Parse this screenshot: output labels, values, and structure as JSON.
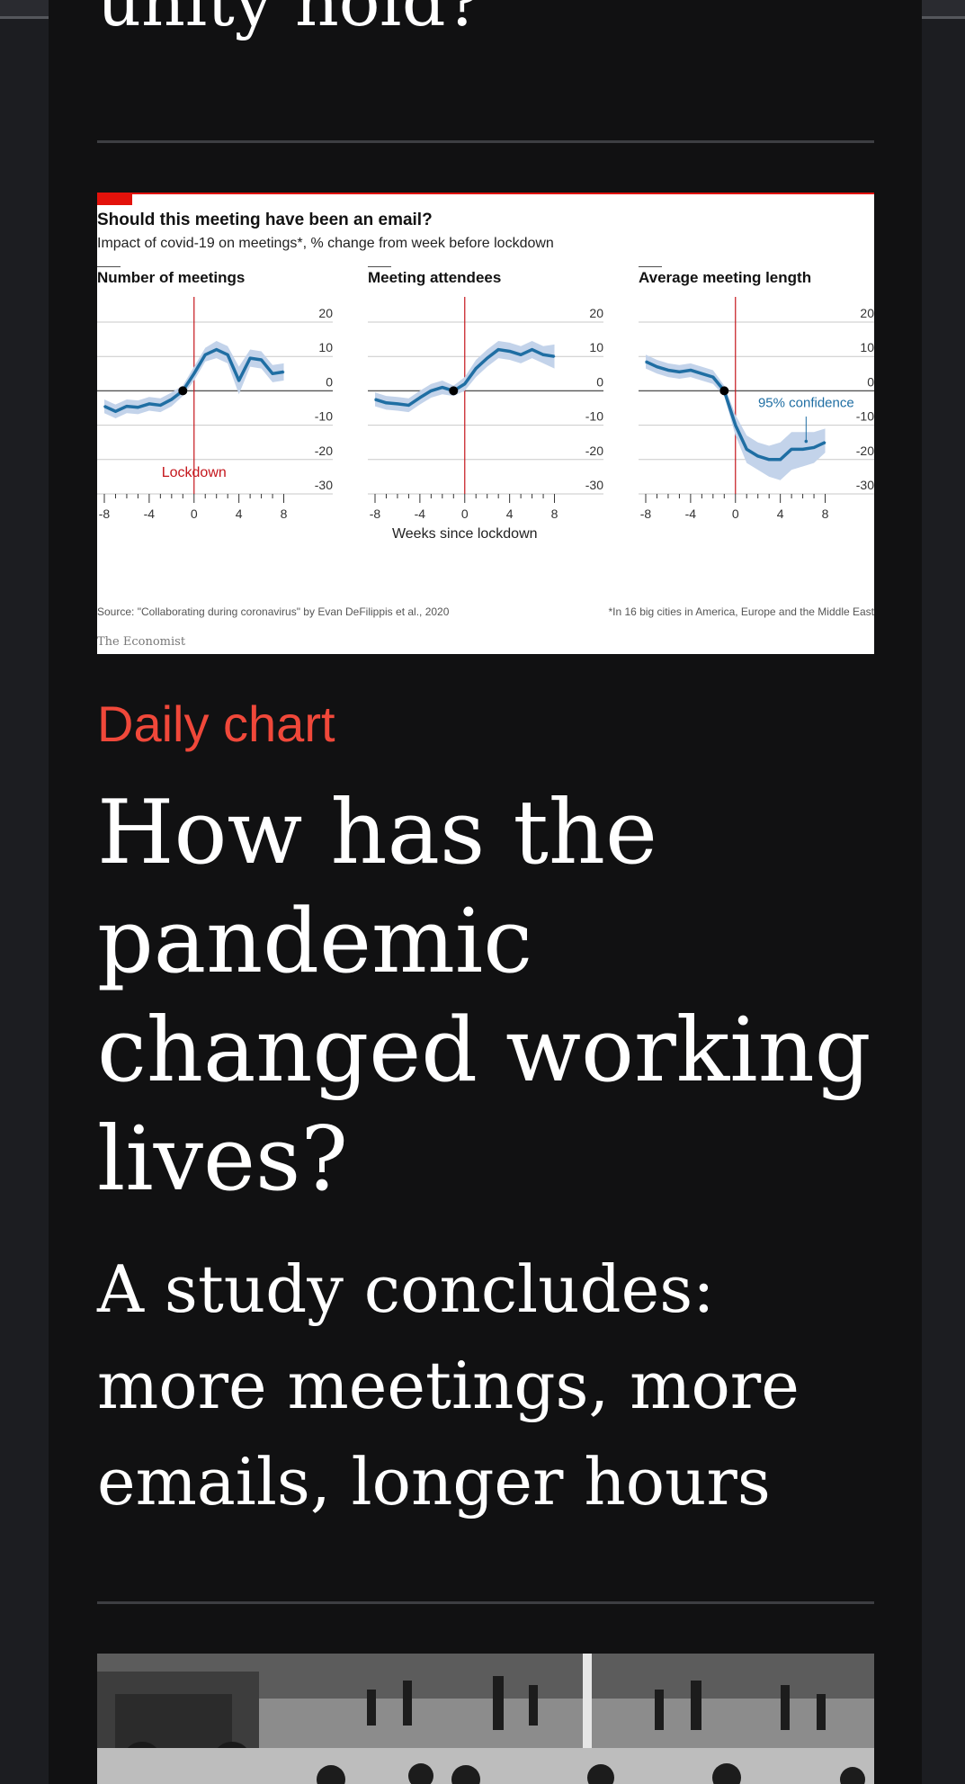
{
  "previous_article": {
    "title_fragment": "unity hold?"
  },
  "chart": {
    "title": "Should this meeting have been an email?",
    "subtitle": "Impact of covid-19 on meetings*, % change from week before lockdown",
    "source": "Source: \"Collaborating during coronavirus\" by Evan DeFilippis et al., 2020",
    "footnote": "*In 16 big cities in America, Europe and the Middle East",
    "credit": "The Economist",
    "colors": {
      "line": "#1f6ea3",
      "band": "#c3d3ea",
      "lockdown": "#c4161c",
      "accent": "#e3120b"
    }
  },
  "chart_data": [
    {
      "type": "line",
      "title": "Number of meetings",
      "xlabel": "Weeks since lockdown",
      "xlim": [
        -8,
        9
      ],
      "ylim": [
        -30,
        20
      ],
      "xticks": [
        -8,
        -4,
        0,
        4,
        8
      ],
      "yticks": [
        20,
        10,
        0,
        -10,
        -20,
        -30
      ],
      "annotation": "Lockdown",
      "x": [
        -8,
        -7,
        -6,
        -5,
        -4,
        -3,
        -2,
        -1,
        0,
        1,
        2,
        3,
        4,
        5,
        6,
        7,
        8
      ],
      "y": [
        -4.5,
        -6,
        -4.5,
        -4.8,
        -3.8,
        -4.2,
        -2.5,
        0,
        5,
        10.5,
        12,
        10.5,
        3,
        9.5,
        9,
        5,
        5.5
      ],
      "lower": [
        -6.5,
        -8,
        -6.5,
        -6.8,
        -5.8,
        -6.2,
        -4.5,
        -1.5,
        3,
        8.5,
        9.5,
        8,
        -1,
        7,
        6.5,
        2.5,
        3
      ],
      "upper": [
        -2.5,
        -4,
        -2.5,
        -2.8,
        -1.8,
        -2.2,
        -0.5,
        1.5,
        7,
        12.5,
        14.5,
        13,
        7,
        12,
        11.5,
        7.5,
        8
      ]
    },
    {
      "type": "line",
      "title": "Meeting attendees",
      "xlim": [
        -8,
        9
      ],
      "ylim": [
        -30,
        20
      ],
      "xticks": [
        -8,
        -4,
        0,
        4,
        8
      ],
      "yticks": [
        20,
        10,
        0,
        -10,
        -20,
        -30
      ],
      "x": [
        -8,
        -7,
        -6,
        -5,
        -4,
        -3,
        -2,
        -1,
        0,
        1,
        2,
        3,
        4,
        5,
        6,
        7,
        8
      ],
      "y": [
        -2.5,
        -3.5,
        -3.8,
        -4.2,
        -2,
        0,
        1,
        0,
        2,
        6.5,
        9.5,
        12,
        11.5,
        10.5,
        12,
        10.5,
        10
      ],
      "lower": [
        -4.5,
        -5.5,
        -5.8,
        -6.2,
        -4,
        -2,
        -1,
        -1.5,
        0,
        4,
        7,
        9.5,
        9,
        8,
        9.5,
        8,
        6.5
      ],
      "upper": [
        -0.5,
        -1.5,
        -1.8,
        -2.2,
        0,
        2,
        3,
        1.5,
        4,
        9,
        12,
        14.5,
        14,
        13,
        14.5,
        13,
        13.5
      ]
    },
    {
      "type": "line",
      "title": "Average meeting length",
      "xlim": [
        -8,
        9
      ],
      "ylim": [
        -30,
        20
      ],
      "xticks": [
        -8,
        -4,
        0,
        4,
        8
      ],
      "yticks": [
        20,
        10,
        0,
        -10,
        -20,
        -30
      ],
      "annotation": "95% confidence",
      "x": [
        -8,
        -7,
        -6,
        -5,
        -4,
        -3,
        -2,
        -1,
        0,
        1,
        2,
        3,
        4,
        5,
        6,
        7,
        8
      ],
      "y": [
        8.5,
        7,
        6,
        5.5,
        6,
        5,
        4,
        0,
        -10,
        -17,
        -19,
        -20,
        -20,
        -17,
        -17,
        -16.5,
        -15
      ],
      "lower": [
        6.5,
        5,
        4,
        3.5,
        4,
        3,
        2,
        -1.5,
        -13,
        -21,
        -23,
        -25,
        -26,
        -23,
        -22,
        -21,
        -18
      ],
      "upper": [
        10.5,
        9,
        8,
        7.5,
        8,
        7,
        6,
        1.5,
        -7,
        -13,
        -15,
        -16,
        -15,
        -12,
        -12,
        -12,
        -11
      ]
    }
  ],
  "article": {
    "kicker": "Daily chart",
    "headline_lines": [
      "How has the",
      "pandemic",
      "changed working",
      "lives?"
    ],
    "subhead_lines": [
      "A study concludes:",
      "more meetings, more",
      "emails, longer hours"
    ]
  }
}
